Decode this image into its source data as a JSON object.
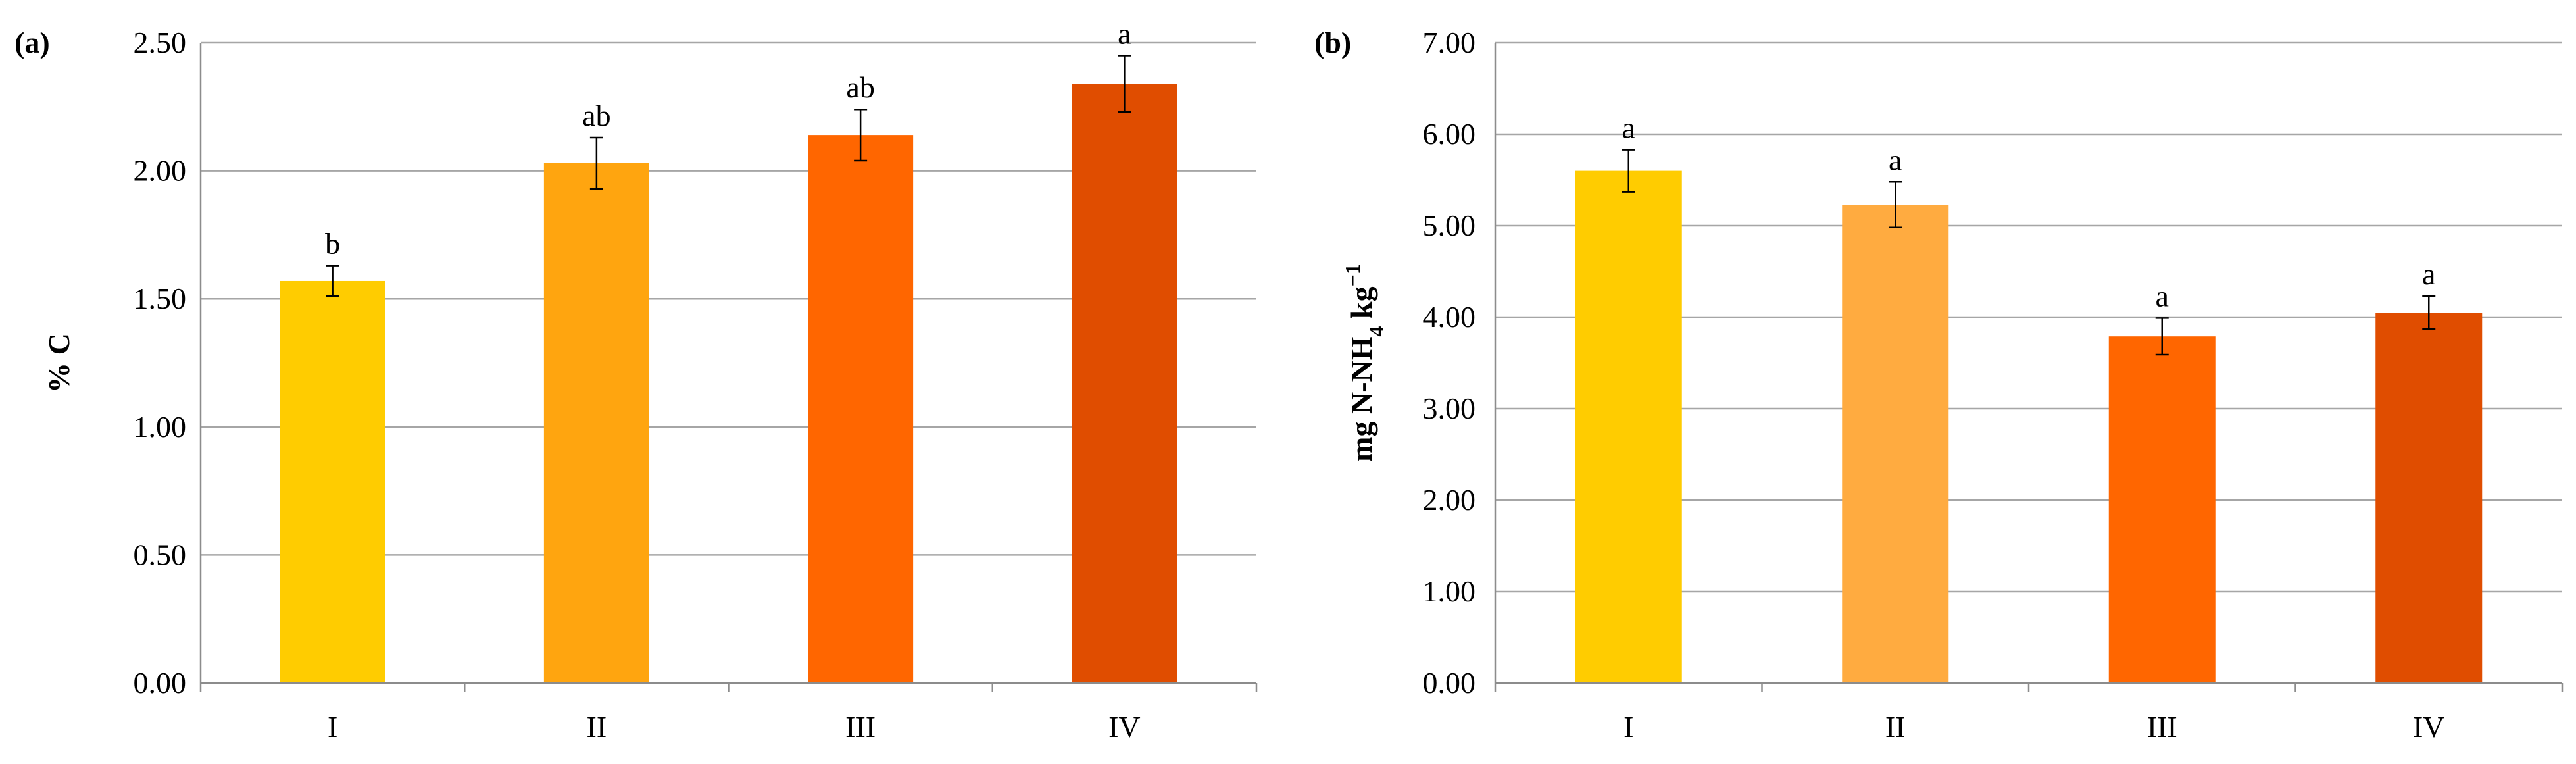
{
  "chart_data": [
    {
      "type": "bar",
      "panel_label": "(a)",
      "categories": [
        "I",
        "II",
        "III",
        "IV"
      ],
      "values": [
        1.57,
        2.03,
        2.14,
        2.34
      ],
      "errors": [
        0.06,
        0.1,
        0.1,
        0.11
      ],
      "letters": [
        "b",
        "ab",
        "ab",
        "a"
      ],
      "colors": [
        "#FFCC00",
        "#FFA50F",
        "#FF6600",
        "#E04D00"
      ],
      "ylabel": "% C",
      "ylim": [
        0,
        2.5
      ],
      "yticks": [
        0,
        0.5,
        1.0,
        1.5,
        2.0,
        2.5
      ],
      "ytick_labels": [
        "0.00",
        "0.50",
        "1.00",
        "1.50",
        "2.00",
        "2.50"
      ],
      "grid": true
    },
    {
      "type": "bar",
      "panel_label": "(b)",
      "categories": [
        "I",
        "II",
        "III",
        "IV"
      ],
      "values": [
        5.6,
        5.23,
        3.79,
        4.05
      ],
      "errors": [
        0.23,
        0.25,
        0.2,
        0.18
      ],
      "letters": [
        "a",
        "a",
        "a",
        "a"
      ],
      "colors": [
        "#FFCC00",
        "#FFAB40",
        "#FF6600",
        "#E04D00"
      ],
      "ylabel": "mg N-NH",
      "ylabel_subscript": "4",
      "ylabel_suffix": " kg",
      "ylabel_superscript": "−1",
      "ylim": [
        0,
        7
      ],
      "yticks": [
        0,
        1,
        2,
        3,
        4,
        5,
        6,
        7
      ],
      "ytick_labels": [
        "0.00",
        "1.00",
        "2.00",
        "3.00",
        "4.00",
        "5.00",
        "6.00",
        "7.00"
      ],
      "grid": true
    }
  ]
}
